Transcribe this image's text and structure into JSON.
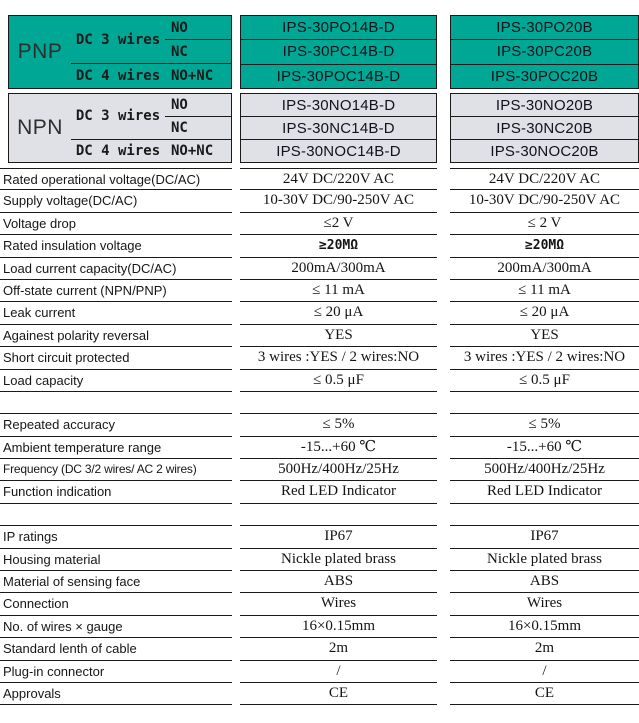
{
  "colors": {
    "teal": "#00A794",
    "npn_gray": "#DFE1E7",
    "line": "#1a1a1a"
  },
  "header": {
    "pnp_label": "PNP",
    "npn_label": "NPN",
    "dc3_label": "DC 3 wires",
    "dc4_label": "DC 4 wires",
    "no_label": "NO",
    "nc_label": "NC",
    "nonc_label": "NO+NC",
    "pnp_models_col1": [
      "IPS-30PO14B-D",
      "IPS-30PC14B-D",
      "IPS-30POC14B-D"
    ],
    "pnp_models_col2": [
      "IPS-30PO20B",
      "IPS-30PC20B",
      "IPS-30POC20B"
    ],
    "npn_models_col1": [
      "IPS-30NO14B-D",
      "IPS-30NC14B-D",
      "IPS-30NOC14B-D"
    ],
    "npn_models_col2": [
      "IPS-30NO20B",
      "IPS-30NC20B",
      "IPS-30NOC20B"
    ]
  },
  "specs": {
    "rows": [
      {
        "label": "Rated operational voltage(DC/AC)",
        "col1": "24V DC/220V AC",
        "col2": "24V DC/220V AC"
      },
      {
        "label": "Supply voltage(DC/AC)",
        "col1": "10-30V DC/90-250V AC",
        "col2": "10-30V DC/90-250V AC"
      },
      {
        "label": "Voltage drop",
        "col1": "≤2 V",
        "col2": "≤ 2 V"
      },
      {
        "label": "Rated insulation voltage",
        "col1": "≥20MΩ",
        "col2": "≥20MΩ",
        "value_style": "mono"
      },
      {
        "label": "Load current capacity(DC/AC)",
        "col1": "200mA/300mA",
        "col2": "200mA/300mA"
      },
      {
        "label": "Off-state current (NPN/PNP)",
        "col1": "≤ 11 mA",
        "col2": "≤ 11 mA"
      },
      {
        "label": "Leak current",
        "col1": "≤ 20 μA",
        "col2": "≤ 20 μA"
      },
      {
        "label": "Againest polarity reversal",
        "col1": "YES",
        "col2": "YES"
      },
      {
        "label": "Short circuit protected",
        "col1": "3 wires :YES / 2 wires:NO",
        "col2": "3 wires :YES / 2 wires:NO"
      },
      {
        "label": "Load capacity",
        "col1": "≤ 0.5 μF",
        "col2": "≤ 0.5 μF"
      },
      {
        "label": "",
        "col1": "",
        "col2": "",
        "spacer": true
      },
      {
        "label": "Repeated accuracy",
        "col1": "≤ 5%",
        "col2": "≤ 5%"
      },
      {
        "label": "Ambient temperature range",
        "col1": "-15...+60 ℃",
        "col2": "-15...+60 ℃"
      },
      {
        "label": "Frequency (DC 3/2 wires/ AC 2 wires)",
        "col1": "500Hz/400Hz/25Hz",
        "col2": "500Hz/400Hz/25Hz",
        "label_style": "condensed"
      },
      {
        "label": "Function indication",
        "col1": "Red LED Indicator",
        "col2": "Red LED Indicator"
      },
      {
        "label": "",
        "col1": "",
        "col2": "",
        "spacer": true
      },
      {
        "label": "IP ratings",
        "col1": "IP67",
        "col2": "IP67"
      },
      {
        "label": "Housing material",
        "col1": "Nickle plated brass",
        "col2": "Nickle plated brass"
      },
      {
        "label": "Material of sensing face",
        "col1": "ABS",
        "col2": "ABS"
      },
      {
        "label": "Connection",
        "col1": "Wires",
        "col2": "Wires"
      },
      {
        "label": "No. of wires × gauge",
        "col1": "16×0.15mm",
        "col2": "16×0.15mm"
      },
      {
        "label": "Standard lenth of cable",
        "col1": "2m",
        "col2": "2m"
      },
      {
        "label": "Plug-in connector",
        "col1": "/",
        "col2": "/"
      },
      {
        "label": "Approvals",
        "col1": "CE",
        "col2": "CE"
      }
    ]
  }
}
